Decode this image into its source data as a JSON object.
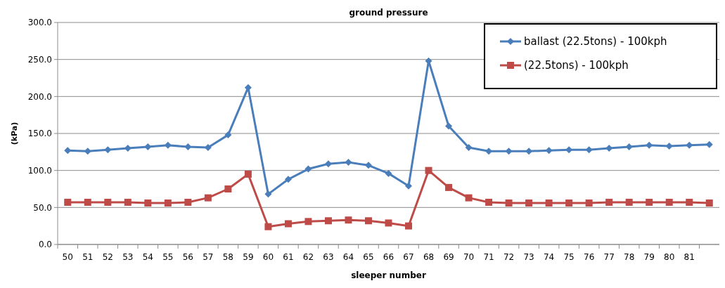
{
  "chart_data": {
    "type": "line",
    "title": "ground pressure",
    "xlabel": "sleeper number",
    "ylabel": "(kPa)",
    "categories": [
      "50",
      "51",
      "52",
      "53",
      "54",
      "55",
      "56",
      "57",
      "58",
      "59",
      "60",
      "61",
      "62",
      "63",
      "64",
      "65",
      "66",
      "67",
      "68",
      "69",
      "70",
      "71",
      "72",
      "73",
      "74",
      "75",
      "76",
      "77",
      "78",
      "79",
      "80",
      "81",
      null
    ],
    "series": [
      {
        "name": "ballast (22.5tons) - 100kph",
        "color": "#4a7ebb",
        "marker": "diamond",
        "values": [
          127,
          126,
          128,
          130,
          132,
          134,
          132,
          131,
          148,
          212,
          68,
          88,
          102,
          109,
          111,
          107,
          96,
          79,
          248,
          160,
          131,
          126,
          126,
          126,
          127,
          128,
          128,
          130,
          132,
          134,
          133,
          134,
          135
        ]
      },
      {
        "name": "(22.5tons) - 100kph",
        "color": "#be4b48",
        "marker": "square",
        "values": [
          57,
          57,
          57,
          57,
          56,
          56,
          57,
          63,
          75,
          95,
          24,
          28,
          31,
          32,
          33,
          32,
          29,
          25,
          100,
          77,
          63,
          57,
          56,
          56,
          56,
          56,
          56,
          57,
          57,
          57,
          57,
          57,
          56
        ]
      }
    ],
    "ylim": [
      0,
      300
    ],
    "yticks": [
      {
        "value": 0,
        "label": "0.0"
      },
      {
        "value": 50,
        "label": "50.0"
      },
      {
        "value": 100,
        "label": "100.0"
      },
      {
        "value": 150,
        "label": "150.0"
      },
      {
        "value": 200,
        "label": "200.0"
      },
      {
        "value": 250,
        "label": "250.0"
      },
      {
        "value": 300,
        "label": "300.0"
      }
    ],
    "grid": "y",
    "legend": "top right"
  }
}
